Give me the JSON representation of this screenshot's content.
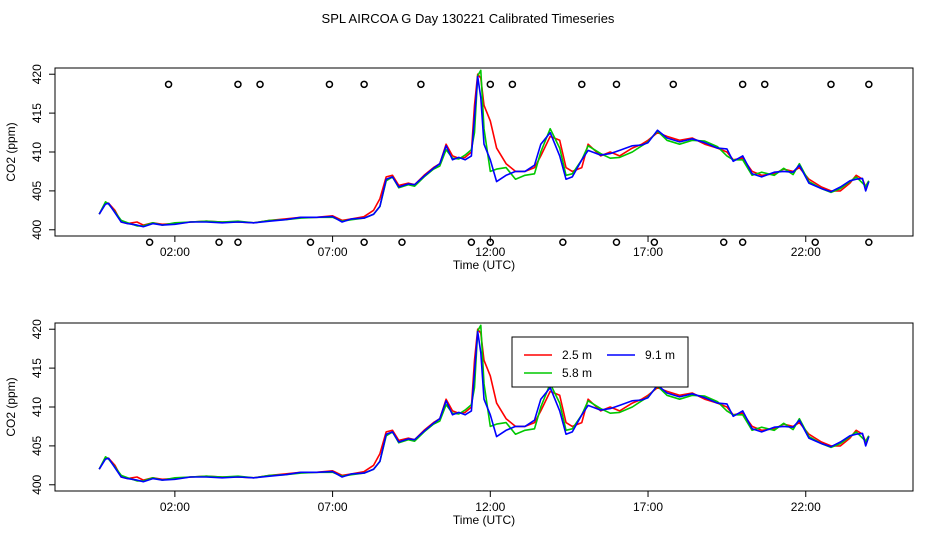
{
  "title": "SPL AIRCOA G  Day 130221  Calibrated Timeseries",
  "colors": {
    "series_2_5": "#ff0000",
    "series_5_8": "#00c800",
    "series_9_1": "#0000ff",
    "axis": "#000000"
  },
  "chart_data": [
    {
      "type": "line",
      "panel": "top",
      "xlabel": "Time (UTC)",
      "ylabel": "CO2 (ppm)",
      "xlim": [
        -1.8,
        25.4
      ],
      "ylim": [
        399.2,
        420.8
      ],
      "xticks": [
        2,
        7,
        12,
        17,
        22
      ],
      "xtick_labels": [
        "02:00",
        "07:00",
        "12:00",
        "17:00",
        "22:00"
      ],
      "yticks": [
        400,
        405,
        410,
        415,
        420
      ],
      "ytick_labels": [
        "400",
        "405",
        "410",
        "415",
        "420"
      ],
      "markers": {
        "upper_y": 418.7,
        "lower_y": 398.4,
        "upper_x": [
          1.8,
          4.0,
          4.7,
          6.9,
          8.0,
          9.8,
          12.0,
          12.7,
          14.9,
          16.0,
          17.8,
          20.0,
          20.7,
          22.8,
          24.0
        ],
        "lower_x": [
          1.2,
          3.4,
          4.0,
          6.3,
          8.0,
          9.2,
          11.4,
          12.0,
          14.3,
          16.0,
          17.2,
          19.4,
          20.0,
          22.3,
          24.0
        ]
      },
      "x": [
        -0.4,
        -0.2,
        -0.1,
        0.1,
        0.3,
        0.5,
        0.8,
        1.0,
        1.3,
        1.6,
        2.0,
        2.5,
        3.0,
        3.5,
        4.0,
        4.5,
        5.0,
        5.5,
        6.0,
        6.5,
        7.0,
        7.3,
        7.6,
        8.0,
        8.3,
        8.5,
        8.7,
        8.9,
        9.1,
        9.4,
        9.6,
        9.9,
        10.2,
        10.4,
        10.6,
        10.8,
        11.0,
        11.2,
        11.4,
        11.5,
        11.6,
        11.7,
        11.8,
        12.0,
        12.2,
        12.5,
        12.8,
        13.1,
        13.4,
        13.6,
        13.9,
        14.2,
        14.4,
        14.6,
        14.9,
        15.1,
        15.5,
        15.8,
        16.1,
        16.5,
        16.8,
        17.0,
        17.3,
        17.6,
        18.0,
        18.4,
        18.8,
        19.2,
        19.5,
        19.7,
        20.0,
        20.3,
        20.6,
        21.0,
        21.3,
        21.6,
        21.8,
        22.1,
        22.5,
        22.8,
        23.1,
        23.4,
        23.6,
        23.8,
        23.9,
        24.0
      ],
      "series": [
        {
          "name": "2.5 m",
          "values": [
            402.0,
            403.5,
            403.4,
            402.5,
            401.0,
            400.8,
            401.0,
            400.6,
            400.9,
            400.7,
            400.8,
            401.0,
            401.1,
            401.0,
            401.0,
            400.9,
            401.2,
            401.4,
            401.6,
            401.6,
            401.8,
            401.2,
            401.4,
            401.7,
            402.5,
            404.0,
            406.8,
            407.0,
            405.7,
            406.0,
            405.8,
            407.0,
            408.0,
            408.5,
            411.0,
            409.5,
            409.2,
            409.3,
            410.0,
            416.0,
            420.0,
            419.5,
            416.0,
            414.0,
            410.5,
            408.5,
            407.5,
            407.5,
            408.0,
            409.5,
            412.0,
            411.5,
            408.0,
            407.5,
            408.0,
            411.0,
            409.5,
            410.0,
            409.5,
            410.5,
            411.0,
            411.5,
            412.5,
            412.0,
            411.5,
            411.8,
            411.0,
            410.5,
            410.0,
            409.0,
            409.2,
            407.5,
            407.0,
            407.2,
            407.8,
            407.5,
            408.0,
            406.5,
            405.5,
            405.0,
            405.0,
            406.0,
            407.0,
            406.5,
            405.5,
            406.3
          ]
        },
        {
          "name": "5.8 m",
          "values": [
            402.0,
            403.6,
            403.3,
            402.3,
            401.2,
            400.9,
            400.5,
            400.5,
            400.9,
            400.6,
            400.9,
            401.0,
            401.1,
            401.0,
            401.1,
            400.9,
            401.2,
            401.3,
            401.5,
            401.6,
            401.6,
            401.1,
            401.3,
            401.5,
            402.0,
            403.0,
            406.3,
            406.8,
            405.4,
            405.8,
            405.6,
            406.8,
            407.8,
            408.2,
            410.3,
            409.2,
            409.1,
            409.6,
            410.3,
            412.5,
            419.8,
            420.5,
            413.0,
            407.5,
            407.8,
            408.0,
            406.5,
            407.0,
            407.2,
            410.0,
            413.0,
            410.5,
            407.0,
            407.2,
            409.0,
            410.8,
            409.8,
            409.2,
            409.3,
            410.0,
            410.8,
            411.3,
            412.7,
            411.5,
            411.0,
            411.5,
            411.4,
            410.7,
            409.5,
            409.0,
            409.0,
            407.0,
            407.4,
            407.0,
            407.9,
            407.1,
            408.5,
            406.2,
            405.3,
            404.8,
            405.3,
            406.2,
            406.8,
            406.0,
            405.6,
            406.3
          ]
        },
        {
          "name": "9.1 m",
          "values": [
            402.0,
            403.3,
            403.4,
            402.2,
            401.0,
            400.8,
            400.6,
            400.4,
            400.8,
            400.6,
            400.7,
            401.0,
            401.0,
            400.9,
            401.0,
            400.9,
            401.1,
            401.3,
            401.6,
            401.6,
            401.7,
            401.0,
            401.4,
            401.5,
            402.0,
            403.0,
            406.5,
            406.8,
            405.5,
            405.9,
            405.8,
            406.9,
            407.9,
            408.5,
            410.8,
            409.0,
            409.3,
            409.0,
            409.5,
            414.5,
            419.7,
            417.0,
            411.0,
            409.0,
            406.2,
            407.0,
            407.5,
            407.5,
            408.3,
            411.0,
            412.5,
            409.5,
            406.5,
            406.8,
            409.0,
            410.2,
            409.6,
            409.8,
            410.2,
            410.8,
            410.9,
            411.2,
            412.8,
            411.8,
            411.3,
            411.7,
            411.2,
            410.5,
            410.4,
            408.8,
            409.5,
            407.2,
            406.8,
            407.4,
            407.5,
            407.4,
            408.3,
            406.0,
            405.3,
            404.9,
            405.5,
            406.3,
            406.5,
            406.6,
            405.0,
            406.2
          ]
        }
      ]
    },
    {
      "type": "line",
      "panel": "bottom",
      "xlabel": "Time (UTC)",
      "ylabel": "CO2 (ppm)",
      "xlim": [
        -1.8,
        25.4
      ],
      "ylim": [
        399.2,
        420.8
      ],
      "xticks": [
        2,
        7,
        12,
        17,
        22
      ],
      "xtick_labels": [
        "02:00",
        "07:00",
        "12:00",
        "17:00",
        "22:00"
      ],
      "yticks": [
        400,
        405,
        410,
        415,
        420
      ],
      "ytick_labels": [
        "400",
        "405",
        "410",
        "415",
        "420"
      ],
      "legend": {
        "entries": [
          "2.5 m",
          "5.8 m",
          "9.1 m"
        ],
        "position": "top-right of center"
      },
      "x": [
        -0.4,
        -0.2,
        -0.1,
        0.1,
        0.3,
        0.5,
        0.8,
        1.0,
        1.3,
        1.6,
        2.0,
        2.5,
        3.0,
        3.5,
        4.0,
        4.5,
        5.0,
        5.5,
        6.0,
        6.5,
        7.0,
        7.3,
        7.6,
        8.0,
        8.3,
        8.5,
        8.7,
        8.9,
        9.1,
        9.4,
        9.6,
        9.9,
        10.2,
        10.4,
        10.6,
        10.8,
        11.0,
        11.2,
        11.4,
        11.5,
        11.6,
        11.7,
        11.8,
        12.0,
        12.2,
        12.5,
        12.8,
        13.1,
        13.4,
        13.6,
        13.9,
        14.2,
        14.4,
        14.6,
        14.9,
        15.1,
        15.5,
        15.8,
        16.1,
        16.5,
        16.8,
        17.0,
        17.3,
        17.6,
        18.0,
        18.4,
        18.8,
        19.2,
        19.5,
        19.7,
        20.0,
        20.3,
        20.6,
        21.0,
        21.3,
        21.6,
        21.8,
        22.1,
        22.5,
        22.8,
        23.1,
        23.4,
        23.6,
        23.8,
        23.9,
        24.0
      ],
      "series": [
        {
          "name": "2.5 m",
          "values": [
            402.0,
            403.5,
            403.4,
            402.5,
            401.0,
            400.8,
            401.0,
            400.6,
            400.9,
            400.7,
            400.8,
            401.0,
            401.1,
            401.0,
            401.0,
            400.9,
            401.2,
            401.4,
            401.6,
            401.6,
            401.8,
            401.2,
            401.4,
            401.7,
            402.5,
            404.0,
            406.8,
            407.0,
            405.7,
            406.0,
            405.8,
            407.0,
            408.0,
            408.5,
            411.0,
            409.5,
            409.2,
            409.3,
            410.0,
            416.0,
            420.0,
            419.5,
            416.0,
            414.0,
            410.5,
            408.5,
            407.5,
            407.5,
            408.0,
            409.5,
            412.0,
            411.5,
            408.0,
            407.5,
            408.0,
            411.0,
            409.5,
            410.0,
            409.5,
            410.5,
            411.0,
            411.5,
            412.5,
            412.0,
            411.5,
            411.8,
            411.0,
            410.5,
            410.0,
            409.0,
            409.2,
            407.5,
            407.0,
            407.2,
            407.8,
            407.5,
            408.0,
            406.5,
            405.5,
            405.0,
            405.0,
            406.0,
            407.0,
            406.5,
            405.5,
            406.3
          ]
        },
        {
          "name": "5.8 m",
          "values": [
            402.0,
            403.6,
            403.3,
            402.3,
            401.2,
            400.9,
            400.5,
            400.5,
            400.9,
            400.6,
            400.9,
            401.0,
            401.1,
            401.0,
            401.1,
            400.9,
            401.2,
            401.3,
            401.5,
            401.6,
            401.6,
            401.1,
            401.3,
            401.5,
            402.0,
            403.0,
            406.3,
            406.8,
            405.4,
            405.8,
            405.6,
            406.8,
            407.8,
            408.2,
            410.3,
            409.2,
            409.1,
            409.6,
            410.3,
            412.5,
            419.8,
            420.5,
            413.0,
            407.5,
            407.8,
            408.0,
            406.5,
            407.0,
            407.2,
            410.0,
            413.0,
            410.5,
            407.0,
            407.2,
            409.0,
            410.8,
            409.8,
            409.2,
            409.3,
            410.0,
            410.8,
            411.3,
            412.7,
            411.5,
            411.0,
            411.5,
            411.4,
            410.7,
            409.5,
            409.0,
            409.0,
            407.0,
            407.4,
            407.0,
            407.9,
            407.1,
            408.5,
            406.2,
            405.3,
            404.8,
            405.3,
            406.2,
            406.8,
            406.0,
            405.6,
            406.3
          ]
        },
        {
          "name": "9.1 m",
          "values": [
            402.0,
            403.3,
            403.4,
            402.2,
            401.0,
            400.8,
            400.6,
            400.4,
            400.8,
            400.6,
            400.7,
            401.0,
            401.0,
            400.9,
            401.0,
            400.9,
            401.1,
            401.3,
            401.6,
            401.6,
            401.7,
            401.0,
            401.4,
            401.5,
            402.0,
            403.0,
            406.5,
            406.8,
            405.5,
            405.9,
            405.8,
            406.9,
            407.9,
            408.5,
            410.8,
            409.0,
            409.3,
            409.0,
            409.5,
            414.5,
            419.7,
            417.0,
            411.0,
            409.0,
            406.2,
            407.0,
            407.5,
            407.5,
            408.3,
            411.0,
            412.5,
            409.5,
            406.5,
            406.8,
            409.0,
            410.2,
            409.6,
            409.8,
            410.2,
            410.8,
            410.9,
            411.2,
            412.8,
            411.8,
            411.3,
            411.7,
            411.2,
            410.5,
            410.4,
            408.8,
            409.5,
            407.2,
            406.8,
            407.4,
            407.5,
            407.4,
            408.3,
            406.0,
            405.3,
            404.9,
            405.5,
            406.3,
            406.5,
            406.6,
            405.0,
            406.2
          ]
        }
      ]
    }
  ]
}
